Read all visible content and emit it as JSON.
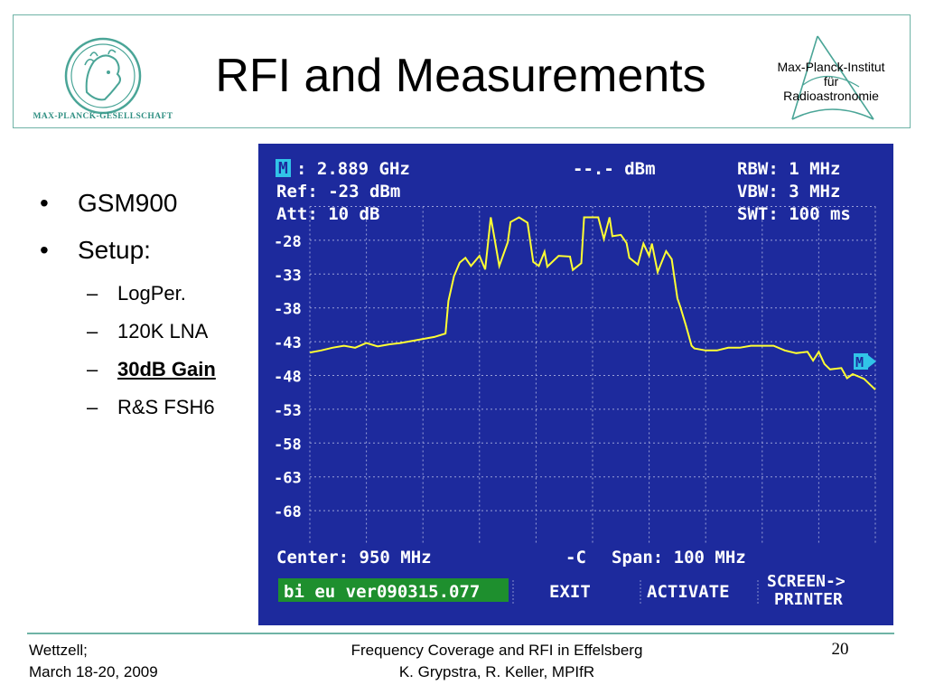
{
  "header": {
    "title": "RFI and Measurements",
    "left_logo_text": "MAX-PLANCK-GESELLSCHAFT",
    "right_logo_lines": [
      "Max-Planck-Institut",
      "für",
      "Radioastronomie"
    ]
  },
  "bullets": [
    {
      "text": "GSM900",
      "sub": []
    },
    {
      "text": "Setup:",
      "sub": [
        {
          "text": "LogPer.",
          "emphasis": false
        },
        {
          "text": "120K LNA",
          "emphasis": false
        },
        {
          "text": "30dB Gain",
          "emphasis": true
        },
        {
          "text": "R&S FSH6",
          "emphasis": false
        }
      ]
    }
  ],
  "analyzer": {
    "marker_label": "M",
    "marker_freq": ": 2.889 GHz",
    "marker_level": "--.- dBm",
    "ref": "Ref: -23 dBm",
    "att": "Att: 10 dB",
    "rbw": "RBW: 1 MHz",
    "vbw": "VBW: 3 MHz",
    "swt": "SWT: 100 ms",
    "center": "Center: 950 MHz",
    "span_symbol": "-C",
    "span": "Span: 100 MHz",
    "softkeys": [
      "bi eu ver090315.077",
      "EXIT",
      "ACTIVATE",
      "SCREEN->",
      "PRINTER"
    ],
    "colors": {
      "background": "#1d2a9d",
      "trace": "#ffff33",
      "text": "#ffffff",
      "marker": "#31c4e8",
      "file_box": "#1e8f2e"
    }
  },
  "chart_data": {
    "type": "line",
    "title": "",
    "xlabel": "",
    "ylabel": "",
    "x_range_mhz": [
      900,
      1000
    ],
    "ylim": [
      -73,
      -23
    ],
    "y_ticks": [
      -28,
      -33,
      -38,
      -43,
      -48,
      -53,
      -58,
      -63,
      -68
    ],
    "y_tick_labels": [
      "-28",
      "-33",
      "-38",
      "-43",
      "-48",
      "-53",
      "-58",
      "-63",
      "-68"
    ],
    "grid": true,
    "series": [
      {
        "x": [
          900,
          902,
          904,
          906,
          908,
          910,
          912,
          914,
          916,
          918,
          920,
          922,
          924,
          924.5,
          925.5,
          926.5,
          927.5,
          928.5,
          930,
          931,
          932,
          932.5,
          933.5,
          935,
          935.5,
          937,
          938.5,
          939.5,
          940.5,
          941.5,
          942,
          944,
          946,
          946.5,
          948,
          948.5,
          951,
          952,
          953,
          953.5,
          955,
          956,
          956.5,
          958,
          959,
          960,
          960.5,
          961.5,
          963,
          964,
          965,
          965.5,
          966.5,
          967.5,
          968,
          970,
          972,
          974,
          976,
          978,
          980,
          982,
          984,
          986,
          988,
          989,
          990,
          991,
          992,
          994,
          995,
          996,
          998,
          1000
        ],
        "y": [
          -44.6,
          -44.3,
          -43.9,
          -43.6,
          -43.9,
          -43.2,
          -43.7,
          -43.4,
          -43.2,
          -42.9,
          -42.6,
          -42.3,
          -41.8,
          -37,
          -33.3,
          -31.3,
          -30.6,
          -31.8,
          -30.3,
          -32.3,
          -24.6,
          -27,
          -31.8,
          -28.3,
          -25.3,
          -24.6,
          -25.4,
          -31.2,
          -31.8,
          -29.7,
          -31.9,
          -30.3,
          -30.4,
          -32.4,
          -31.4,
          -24.6,
          -24.6,
          -27.8,
          -24.6,
          -27.4,
          -27.2,
          -28.4,
          -30.6,
          -31.6,
          -28.5,
          -30.3,
          -28.5,
          -32.7,
          -29.6,
          -30.8,
          -36.6,
          -37.8,
          -40.6,
          -43.6,
          -44.0,
          -44.3,
          -44.3,
          -43.9,
          -43.9,
          -43.6,
          -43.6,
          -43.6,
          -44.3,
          -44.7,
          -44.5,
          -45.8,
          -44.5,
          -46.3,
          -47.1,
          -46.9,
          -48.4,
          -47.8,
          -48.5,
          -50.1
        ]
      }
    ]
  },
  "footer": {
    "left_line1": "Wettzell;",
    "left_line2": "March 18-20, 2009",
    "center_line1": "Frequency Coverage and RFI in Effelsberg",
    "center_line2": "K. Grypstra, R. Keller, MPIfR",
    "page": "20"
  }
}
